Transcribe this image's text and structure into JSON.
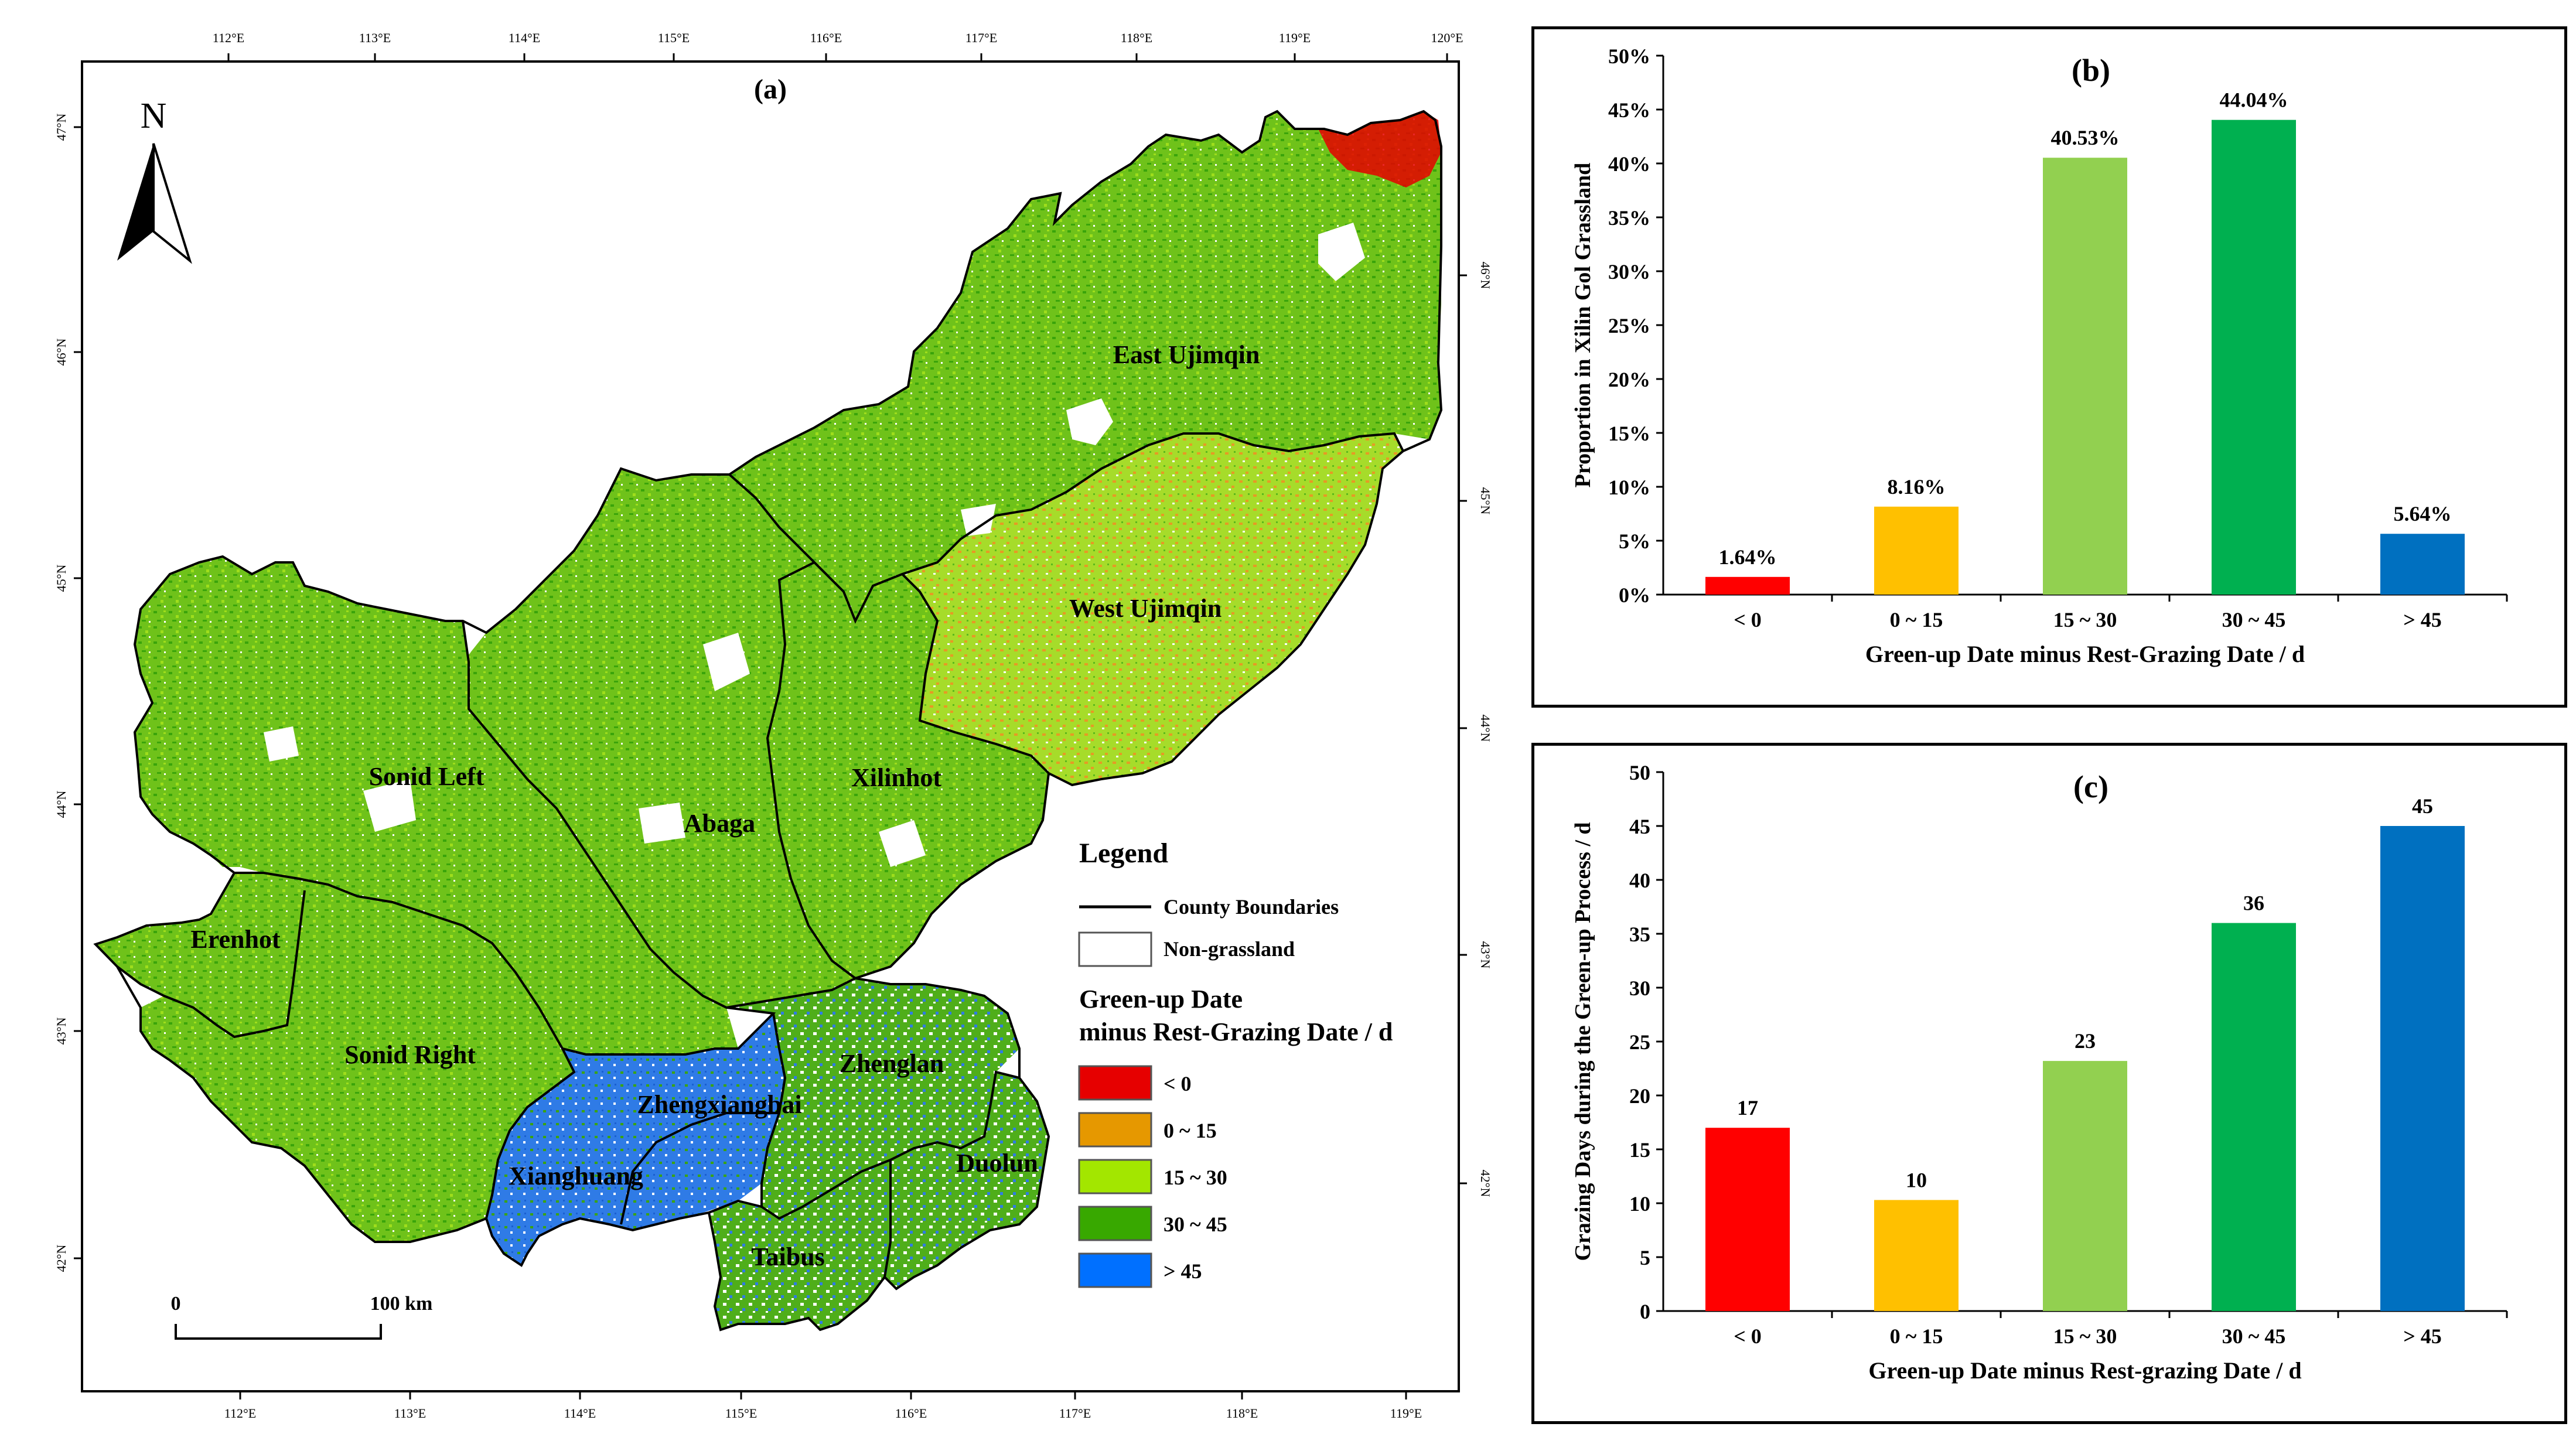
{
  "map": {
    "label": "(a)",
    "north": "N",
    "lon_ticks": [
      "112°E",
      "113°E",
      "114°E",
      "115°E",
      "116°E",
      "117°E",
      "118°E",
      "119°E",
      "120°E"
    ],
    "lon_ticks_bottom": [
      "112°E",
      "113°E",
      "114°E",
      "115°E",
      "116°E",
      "117°E",
      "118°E",
      "119°E"
    ],
    "lat_ticks_left": [
      "47°N",
      "46°N",
      "45°N",
      "44°N",
      "43°N",
      "42°N"
    ],
    "lat_ticks_right": [
      "46°N",
      "45°N",
      "44°N",
      "43°N",
      "42°N"
    ],
    "counties": [
      "East Ujimqin",
      "West Ujimqin",
      "Xilinhot",
      "Abaga",
      "Sonid Left",
      "Erenhot",
      "Sonid Right",
      "Zhengxiangbai",
      "Zhenglan",
      "Xianghuang",
      "Duolun",
      "Taibus"
    ],
    "scale": {
      "zero": "0",
      "end": "100 km"
    },
    "legend": {
      "title": "Legend",
      "boundary_label": "County Boundaries",
      "nongrass_label": "Non-grassland",
      "class_title_1": "Green-up Date",
      "class_title_2": "minus Rest-Grazing Date / d",
      "classes": [
        {
          "label": "< 0",
          "color": "#e60000"
        },
        {
          "label": "0 ~ 15",
          "color": "#e69800"
        },
        {
          "label": "15 ~ 30",
          "color": "#a3e600"
        },
        {
          "label": "30 ~ 45",
          "color": "#38a800"
        },
        {
          "label": "> 45",
          "color": "#0070ff"
        }
      ]
    }
  },
  "chart_data": [
    {
      "type": "bar",
      "label": "(b)",
      "categories": [
        "< 0",
        "0 ~ 15",
        "15 ~ 30",
        "30 ~ 45",
        "> 45"
      ],
      "values": [
        1.64,
        8.16,
        40.53,
        44.04,
        5.64
      ],
      "value_labels": [
        "1.64%",
        "8.16%",
        "40.53%",
        "44.04%",
        "5.64%"
      ],
      "colors": [
        "#ff0000",
        "#ffc000",
        "#92d050",
        "#00b050",
        "#0070c0"
      ],
      "xlabel": "Green-up Date minus Rest-Grazing Date / d",
      "ylabel": "Proportion in Xilin Gol Grassland",
      "ylim": [
        0,
        50
      ],
      "yticks": [
        "0%",
        "5%",
        "10%",
        "15%",
        "20%",
        "25%",
        "30%",
        "35%",
        "40%",
        "45%",
        "50%"
      ]
    },
    {
      "type": "bar",
      "label": "(c)",
      "categories": [
        "< 0",
        "0 ~ 15",
        "15 ~ 30",
        "30 ~ 45",
        "> 45"
      ],
      "values": [
        17,
        10.3,
        23.2,
        36,
        45
      ],
      "value_labels": [
        "17",
        "10",
        "23",
        "36",
        "45"
      ],
      "colors": [
        "#ff0000",
        "#ffc000",
        "#92d050",
        "#00b050",
        "#0070c0"
      ],
      "xlabel": "Green-up Date minus Rest-grazing Date / d",
      "ylabel": "Grazing Days during the Green-up Process / d",
      "ylim": [
        0,
        50
      ],
      "yticks": [
        "0",
        "5",
        "10",
        "15",
        "20",
        "25",
        "30",
        "35",
        "40",
        "45",
        "50"
      ]
    }
  ]
}
